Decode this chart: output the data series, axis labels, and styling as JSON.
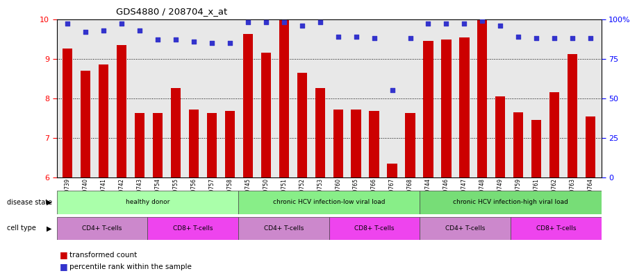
{
  "title": "GDS4880 / 208704_x_at",
  "samples": [
    "GSM1210739",
    "GSM1210740",
    "GSM1210741",
    "GSM1210742",
    "GSM1210743",
    "GSM1210754",
    "GSM1210755",
    "GSM1210756",
    "GSM1210757",
    "GSM1210758",
    "GSM1210745",
    "GSM1210750",
    "GSM1210751",
    "GSM1210752",
    "GSM1210753",
    "GSM1210760",
    "GSM1210765",
    "GSM1210766",
    "GSM1210767",
    "GSM1210768",
    "GSM1210744",
    "GSM1210746",
    "GSM1210747",
    "GSM1210748",
    "GSM1210749",
    "GSM1210759",
    "GSM1210761",
    "GSM1210762",
    "GSM1210763",
    "GSM1210764"
  ],
  "bar_values": [
    9.25,
    8.7,
    8.85,
    9.35,
    7.62,
    7.62,
    8.25,
    7.72,
    7.63,
    7.67,
    9.62,
    9.15,
    9.98,
    8.65,
    8.25,
    7.72,
    7.72,
    7.68,
    6.35,
    7.63,
    9.45,
    9.48,
    9.53,
    9.98,
    8.05,
    7.65,
    7.45,
    8.15,
    9.12,
    7.53
  ],
  "percentile_values": [
    97,
    92,
    93,
    97,
    93,
    87,
    87,
    86,
    85,
    85,
    98,
    98,
    98,
    96,
    98,
    89,
    89,
    88,
    55,
    88,
    97,
    97,
    97,
    99,
    96,
    89,
    88,
    88,
    88,
    88
  ],
  "bar_color": "#cc0000",
  "marker_color": "#3333cc",
  "plot_bg_color": "#e8e8e8",
  "ylim_left": [
    6,
    10
  ],
  "ylim_right": [
    0,
    100
  ],
  "yticks_left": [
    6,
    7,
    8,
    9,
    10
  ],
  "yticks_right": [
    0,
    25,
    50,
    75,
    100
  ],
  "ytick_labels_right": [
    "0",
    "25",
    "50",
    "75",
    "100%"
  ],
  "disease_state_bands": [
    {
      "label": "healthy donor",
      "start": 0,
      "end": 9,
      "color": "#aaffaa"
    },
    {
      "label": "chronic HCV infection-low viral load",
      "start": 10,
      "end": 19,
      "color": "#88ee88"
    },
    {
      "label": "chronic HCV infection-high viral load",
      "start": 20,
      "end": 29,
      "color": "#77dd77"
    }
  ],
  "cell_type_bands": [
    {
      "label": "CD4+ T-cells",
      "start": 0,
      "end": 4,
      "color": "#cc88cc"
    },
    {
      "label": "CD8+ T-cells",
      "start": 5,
      "end": 9,
      "color": "#ee44ee"
    },
    {
      "label": "CD4+ T-cells",
      "start": 10,
      "end": 14,
      "color": "#cc88cc"
    },
    {
      "label": "CD8+ T-cells",
      "start": 15,
      "end": 19,
      "color": "#ee44ee"
    },
    {
      "label": "CD4+ T-cells",
      "start": 20,
      "end": 24,
      "color": "#cc88cc"
    },
    {
      "label": "CD8+ T-cells",
      "start": 25,
      "end": 29,
      "color": "#ee44ee"
    }
  ],
  "disease_state_label": "disease state",
  "cell_type_label": "cell type",
  "legend_bar_label": "transformed count",
  "legend_marker_label": "percentile rank within the sample",
  "bar_width": 0.55
}
